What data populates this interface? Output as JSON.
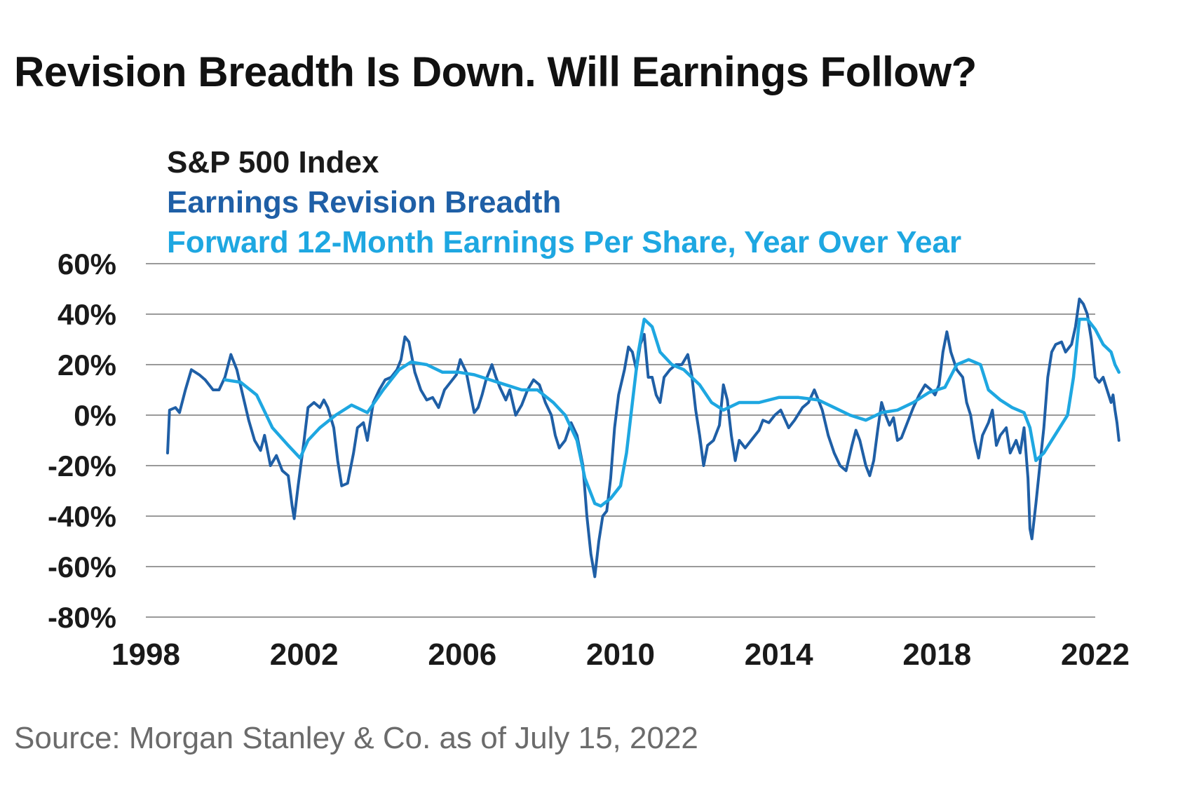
{
  "page": {
    "title": "Revision Breadth Is Down. Will Earnings Follow?",
    "source": "Source: Morgan Stanley & Co. as of July 15, 2022"
  },
  "chart_data": {
    "type": "line",
    "title": "",
    "xlabel": "",
    "ylabel": "",
    "xlim": [
      1998,
      2022
    ],
    "ylim": [
      -80,
      60
    ],
    "grid": true,
    "x_ticks": [
      1998,
      2002,
      2006,
      2010,
      2014,
      2018,
      2022
    ],
    "x_tick_labels": [
      "1998",
      "2002",
      "2006",
      "2010",
      "2014",
      "2018",
      "2022"
    ],
    "y_ticks": [
      60,
      40,
      20,
      0,
      -20,
      -40,
      -60,
      -80
    ],
    "y_tick_labels": [
      "60%",
      "40%",
      "20%",
      "0%",
      "-20%",
      "-40%",
      "-60%",
      "-80%"
    ],
    "legend": {
      "placement": "top-left",
      "entries": [
        {
          "label": "S&P 500 Index",
          "color": "#1a1a1a"
        },
        {
          "label": "Earnings Revision Breadth",
          "color": "#1f5fa6"
        },
        {
          "label": "Forward 12-Month Earnings Per Share, Year Over Year",
          "color": "#1ea7e1"
        }
      ]
    },
    "series": [
      {
        "name": "Earnings Revision Breadth",
        "color": "#1f5fa6",
        "points": [
          [
            1998.55,
            -15
          ],
          [
            1998.6,
            2
          ],
          [
            1998.75,
            3
          ],
          [
            1998.85,
            1
          ],
          [
            1999.0,
            10
          ],
          [
            1999.15,
            18
          ],
          [
            1999.35,
            16
          ],
          [
            1999.5,
            14
          ],
          [
            1999.7,
            10
          ],
          [
            1999.85,
            10
          ],
          [
            2000.0,
            15
          ],
          [
            2000.15,
            24
          ],
          [
            2000.3,
            18
          ],
          [
            2000.45,
            8
          ],
          [
            2000.6,
            -2
          ],
          [
            2000.75,
            -10
          ],
          [
            2000.9,
            -14
          ],
          [
            2001.0,
            -8
          ],
          [
            2001.15,
            -20
          ],
          [
            2001.3,
            -16
          ],
          [
            2001.45,
            -22
          ],
          [
            2001.6,
            -24
          ],
          [
            2001.7,
            -36
          ],
          [
            2001.75,
            -41
          ],
          [
            2001.85,
            -28
          ],
          [
            2002.0,
            -10
          ],
          [
            2002.1,
            3
          ],
          [
            2002.25,
            5
          ],
          [
            2002.4,
            3
          ],
          [
            2002.5,
            6
          ],
          [
            2002.6,
            3
          ],
          [
            2002.75,
            -5
          ],
          [
            2002.85,
            -18
          ],
          [
            2002.95,
            -28
          ],
          [
            2003.1,
            -27
          ],
          [
            2003.25,
            -15
          ],
          [
            2003.35,
            -5
          ],
          [
            2003.5,
            -3
          ],
          [
            2003.6,
            -10
          ],
          [
            2003.75,
            5
          ],
          [
            2003.9,
            10
          ],
          [
            2004.05,
            14
          ],
          [
            2004.2,
            15
          ],
          [
            2004.35,
            18
          ],
          [
            2004.45,
            22
          ],
          [
            2004.55,
            31
          ],
          [
            2004.65,
            29
          ],
          [
            2004.8,
            17
          ],
          [
            2004.95,
            10
          ],
          [
            2005.1,
            6
          ],
          [
            2005.25,
            7
          ],
          [
            2005.4,
            3
          ],
          [
            2005.55,
            10
          ],
          [
            2005.7,
            13
          ],
          [
            2005.85,
            16
          ],
          [
            2005.95,
            22
          ],
          [
            2006.1,
            17
          ],
          [
            2006.2,
            9
          ],
          [
            2006.3,
            1
          ],
          [
            2006.4,
            3
          ],
          [
            2006.5,
            8
          ],
          [
            2006.6,
            14
          ],
          [
            2006.75,
            20
          ],
          [
            2006.85,
            15
          ],
          [
            2006.95,
            11
          ],
          [
            2007.1,
            6
          ],
          [
            2007.2,
            10
          ],
          [
            2007.35,
            0
          ],
          [
            2007.5,
            4
          ],
          [
            2007.65,
            10
          ],
          [
            2007.8,
            14
          ],
          [
            2007.95,
            12
          ],
          [
            2008.1,
            5
          ],
          [
            2008.25,
            0
          ],
          [
            2008.35,
            -8
          ],
          [
            2008.45,
            -13
          ],
          [
            2008.6,
            -10
          ],
          [
            2008.75,
            -3
          ],
          [
            2008.9,
            -8
          ],
          [
            2009.05,
            -20
          ],
          [
            2009.15,
            -40
          ],
          [
            2009.25,
            -55
          ],
          [
            2009.35,
            -64
          ],
          [
            2009.45,
            -50
          ],
          [
            2009.55,
            -40
          ],
          [
            2009.65,
            -38
          ],
          [
            2009.75,
            -25
          ],
          [
            2009.85,
            -5
          ],
          [
            2009.95,
            8
          ],
          [
            2010.1,
            18
          ],
          [
            2010.2,
            27
          ],
          [
            2010.3,
            25
          ],
          [
            2010.4,
            18
          ],
          [
            2010.5,
            28
          ],
          [
            2010.6,
            32
          ],
          [
            2010.7,
            15
          ],
          [
            2010.8,
            15
          ],
          [
            2010.9,
            8
          ],
          [
            2011.0,
            5
          ],
          [
            2011.1,
            15
          ],
          [
            2011.25,
            18
          ],
          [
            2011.4,
            20
          ],
          [
            2011.55,
            20
          ],
          [
            2011.7,
            24
          ],
          [
            2011.8,
            16
          ],
          [
            2011.9,
            2
          ],
          [
            2012.0,
            -8
          ],
          [
            2012.1,
            -20
          ],
          [
            2012.2,
            -12
          ],
          [
            2012.35,
            -10
          ],
          [
            2012.5,
            -4
          ],
          [
            2012.6,
            12
          ],
          [
            2012.7,
            6
          ],
          [
            2012.8,
            -8
          ],
          [
            2012.9,
            -18
          ],
          [
            2013.0,
            -10
          ],
          [
            2013.15,
            -13
          ],
          [
            2013.3,
            -10
          ],
          [
            2013.5,
            -6
          ],
          [
            2013.6,
            -2
          ],
          [
            2013.75,
            -3
          ],
          [
            2013.9,
            0
          ],
          [
            2014.05,
            2
          ],
          [
            2014.25,
            -5
          ],
          [
            2014.4,
            -2
          ],
          [
            2014.6,
            3
          ],
          [
            2014.75,
            5
          ],
          [
            2014.9,
            10
          ],
          [
            2015.0,
            6
          ],
          [
            2015.1,
            2
          ],
          [
            2015.25,
            -8
          ],
          [
            2015.4,
            -15
          ],
          [
            2015.55,
            -20
          ],
          [
            2015.7,
            -22
          ],
          [
            2015.85,
            -12
          ],
          [
            2015.95,
            -6
          ],
          [
            2016.05,
            -10
          ],
          [
            2016.2,
            -20
          ],
          [
            2016.3,
            -24
          ],
          [
            2016.4,
            -18
          ],
          [
            2016.5,
            -6
          ],
          [
            2016.6,
            5
          ],
          [
            2016.7,
            0
          ],
          [
            2016.8,
            -4
          ],
          [
            2016.9,
            -1
          ],
          [
            2017.0,
            -10
          ],
          [
            2017.1,
            -9
          ],
          [
            2017.25,
            -3
          ],
          [
            2017.4,
            3
          ],
          [
            2017.55,
            8
          ],
          [
            2017.7,
            12
          ],
          [
            2017.85,
            10
          ],
          [
            2017.95,
            8
          ],
          [
            2018.05,
            12
          ],
          [
            2018.15,
            25
          ],
          [
            2018.25,
            33
          ],
          [
            2018.35,
            25
          ],
          [
            2018.5,
            18
          ],
          [
            2018.65,
            15
          ],
          [
            2018.75,
            5
          ],
          [
            2018.85,
            0
          ],
          [
            2018.95,
            -10
          ],
          [
            2019.05,
            -17
          ],
          [
            2019.15,
            -8
          ],
          [
            2019.3,
            -3
          ],
          [
            2019.4,
            2
          ],
          [
            2019.5,
            -12
          ],
          [
            2019.6,
            -8
          ],
          [
            2019.75,
            -5
          ],
          [
            2019.85,
            -15
          ],
          [
            2020.0,
            -10
          ],
          [
            2020.1,
            -15
          ],
          [
            2020.2,
            -5
          ],
          [
            2020.3,
            -25
          ],
          [
            2020.35,
            -45
          ],
          [
            2020.4,
            -49
          ],
          [
            2020.5,
            -35
          ],
          [
            2020.6,
            -20
          ],
          [
            2020.7,
            -5
          ],
          [
            2020.8,
            15
          ],
          [
            2020.9,
            25
          ],
          [
            2021.0,
            28
          ],
          [
            2021.15,
            29
          ],
          [
            2021.25,
            25
          ],
          [
            2021.4,
            28
          ],
          [
            2021.5,
            35
          ],
          [
            2021.6,
            46
          ],
          [
            2021.7,
            44
          ],
          [
            2021.8,
            40
          ],
          [
            2021.9,
            30
          ],
          [
            2022.0,
            15
          ],
          [
            2022.1,
            13
          ],
          [
            2022.2,
            15
          ],
          [
            2022.3,
            10
          ],
          [
            2022.4,
            5
          ],
          [
            2022.45,
            8
          ],
          [
            2022.5,
            2
          ],
          [
            2022.55,
            -3
          ],
          [
            2022.6,
            -10
          ]
        ]
      },
      {
        "name": "Forward 12-Month Earnings Per Share, Year Over Year",
        "color": "#1ea7e1",
        "points": [
          [
            2000.0,
            14
          ],
          [
            2000.4,
            13
          ],
          [
            2000.8,
            8
          ],
          [
            2001.2,
            -5
          ],
          [
            2001.6,
            -12
          ],
          [
            2001.9,
            -17
          ],
          [
            2002.1,
            -10
          ],
          [
            2002.4,
            -5
          ],
          [
            2002.8,
            0
          ],
          [
            2003.2,
            4
          ],
          [
            2003.6,
            1
          ],
          [
            2004.0,
            10
          ],
          [
            2004.4,
            18
          ],
          [
            2004.7,
            21
          ],
          [
            2005.1,
            20
          ],
          [
            2005.5,
            17
          ],
          [
            2005.9,
            17
          ],
          [
            2006.3,
            16
          ],
          [
            2006.7,
            14
          ],
          [
            2007.1,
            12
          ],
          [
            2007.5,
            10
          ],
          [
            2007.9,
            10
          ],
          [
            2008.3,
            5
          ],
          [
            2008.6,
            0
          ],
          [
            2008.9,
            -10
          ],
          [
            2009.1,
            -25
          ],
          [
            2009.35,
            -35
          ],
          [
            2009.5,
            -36
          ],
          [
            2009.75,
            -33
          ],
          [
            2010.0,
            -28
          ],
          [
            2010.15,
            -15
          ],
          [
            2010.3,
            5
          ],
          [
            2010.45,
            25
          ],
          [
            2010.6,
            38
          ],
          [
            2010.8,
            35
          ],
          [
            2011.0,
            25
          ],
          [
            2011.3,
            20
          ],
          [
            2011.6,
            18
          ],
          [
            2012.0,
            12
          ],
          [
            2012.3,
            5
          ],
          [
            2012.6,
            2
          ],
          [
            2013.0,
            5
          ],
          [
            2013.5,
            5
          ],
          [
            2014.0,
            7
          ],
          [
            2014.5,
            7
          ],
          [
            2015.0,
            6
          ],
          [
            2015.4,
            3
          ],
          [
            2015.8,
            0
          ],
          [
            2016.2,
            -2
          ],
          [
            2016.6,
            1
          ],
          [
            2017.0,
            2
          ],
          [
            2017.4,
            5
          ],
          [
            2017.8,
            9
          ],
          [
            2018.2,
            11
          ],
          [
            2018.5,
            20
          ],
          [
            2018.8,
            22
          ],
          [
            2019.1,
            20
          ],
          [
            2019.3,
            10
          ],
          [
            2019.6,
            6
          ],
          [
            2019.9,
            3
          ],
          [
            2020.2,
            1
          ],
          [
            2020.35,
            -5
          ],
          [
            2020.5,
            -18
          ],
          [
            2020.7,
            -15
          ],
          [
            2020.9,
            -10
          ],
          [
            2021.1,
            -5
          ],
          [
            2021.3,
            0
          ],
          [
            2021.45,
            15
          ],
          [
            2021.6,
            38
          ],
          [
            2021.8,
            38
          ],
          [
            2022.0,
            34
          ],
          [
            2022.2,
            28
          ],
          [
            2022.4,
            25
          ],
          [
            2022.5,
            20
          ],
          [
            2022.6,
            17
          ]
        ]
      }
    ]
  }
}
